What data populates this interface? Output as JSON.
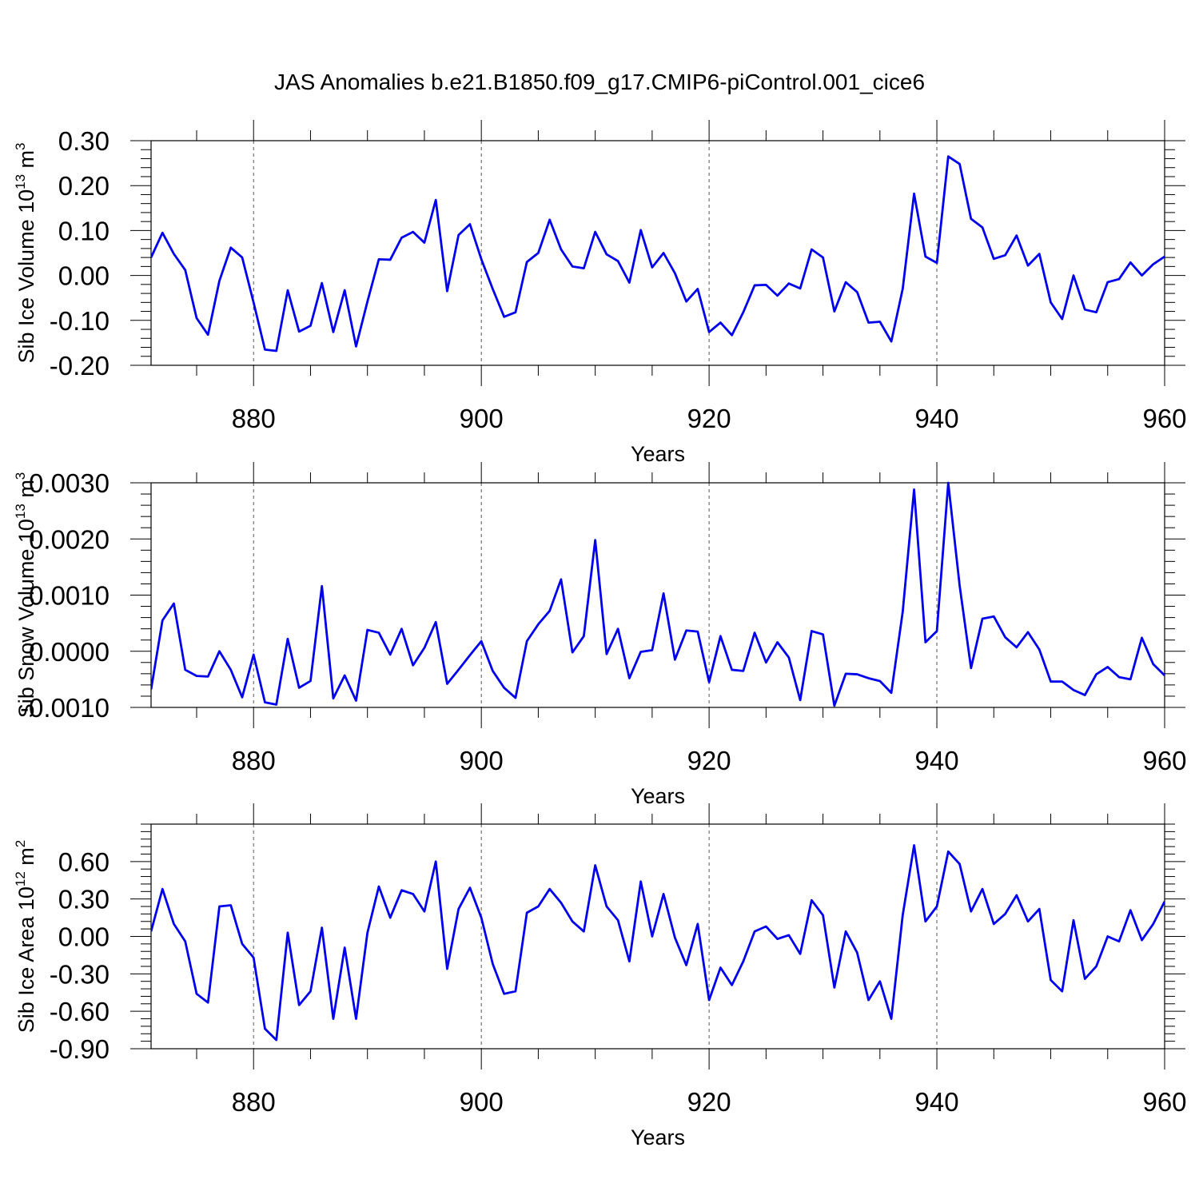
{
  "title": "JAS Anomalies b.e21.B1850.f09_g17.CMIP6-piControl.001_cice6",
  "line_color": "#0000ee",
  "chart_data": [
    {
      "type": "line",
      "title": "JAS Anomalies b.e21.B1850.f09_g17.CMIP6-piControl.001_cice6",
      "xlabel": "Years",
      "ylabel": "Sib Ice Volume 10",
      "ylabel_exp": "13",
      "ylabel_unit": " m",
      "ylabel_unit_exp": "3",
      "xlim": [
        871,
        960
      ],
      "ylim": [
        -0.2,
        0.3
      ],
      "x_ticks": [
        880,
        900,
        920,
        940,
        960
      ],
      "y_ticks": [
        "-0.20",
        "-0.10",
        "0.00",
        "0.10",
        "0.20",
        "0.30"
      ],
      "x_start": 871,
      "values": [
        0.04,
        0.095,
        0.048,
        0.012,
        -0.095,
        -0.132,
        -0.012,
        0.062,
        0.04,
        -0.06,
        -0.165,
        -0.168,
        -0.033,
        -0.125,
        -0.112,
        -0.017,
        -0.126,
        -0.033,
        -0.158,
        -0.058,
        0.036,
        0.035,
        0.084,
        0.097,
        0.073,
        0.168,
        -0.035,
        0.09,
        0.114,
        0.036,
        -0.03,
        -0.092,
        -0.082,
        0.03,
        0.05,
        0.124,
        0.058,
        0.02,
        0.016,
        0.097,
        0.047,
        0.032,
        -0.016,
        0.101,
        0.018,
        0.05,
        0.005,
        -0.058,
        -0.03,
        -0.126,
        -0.105,
        -0.133,
        -0.082,
        -0.022,
        -0.021,
        -0.045,
        -0.018,
        -0.029,
        0.058,
        0.04,
        -0.08,
        -0.015,
        -0.037,
        -0.105,
        -0.103,
        -0.147,
        -0.03,
        0.182,
        0.042,
        0.028,
        0.265,
        0.248,
        0.126,
        0.107,
        0.037,
        0.045,
        0.089,
        0.022,
        0.048,
        -0.06,
        -0.097,
        0.0,
        -0.076,
        -0.082,
        -0.015,
        -0.008,
        0.029,
        0.0,
        0.025,
        0.042
      ]
    },
    {
      "type": "line",
      "xlabel": "Years",
      "ylabel": "Sib Snow Volume 10",
      "ylabel_exp": "13",
      "ylabel_unit": " m",
      "ylabel_unit_exp": "3",
      "xlim": [
        871,
        960
      ],
      "ylim": [
        -0.001,
        0.003
      ],
      "x_ticks": [
        880,
        900,
        920,
        940,
        960
      ],
      "y_ticks": [
        "-0.0010",
        "0.0000",
        "0.0010",
        "0.0020",
        "0.0030"
      ],
      "x_start": 871,
      "values": [
        -0.00068,
        0.00055,
        0.00085,
        -0.00033,
        -0.00044,
        -0.00045,
        0.0,
        -0.00033,
        -0.00082,
        -6e-05,
        -0.00091,
        -0.00095,
        0.00022,
        -0.00065,
        -0.00053,
        0.00116,
        -0.00084,
        -0.00043,
        -0.00088,
        0.00038,
        0.00033,
        -6e-05,
        0.0004,
        -0.00025,
        6e-05,
        0.00052,
        -0.00058,
        -0.00033,
        -7e-05,
        0.00018,
        -0.00035,
        -0.00065,
        -0.00083,
        0.00018,
        0.00048,
        0.00072,
        0.00128,
        -2e-05,
        0.00027,
        0.00198,
        -5e-05,
        0.0004,
        -0.00048,
        -1e-05,
        2e-05,
        0.00103,
        -0.00015,
        0.00037,
        0.00035,
        -0.00055,
        0.00027,
        -0.00033,
        -0.00035,
        0.00033,
        -0.0002,
        0.00016,
        -0.00011,
        -0.00087,
        0.00036,
        0.0003,
        -0.00097,
        -0.0004,
        -0.00041,
        -0.00048,
        -0.00053,
        -0.00074,
        0.0007,
        0.00288,
        0.00016,
        0.00036,
        0.003,
        0.00117,
        -0.0003,
        0.00058,
        0.00062,
        0.00025,
        7e-05,
        0.00034,
        3e-05,
        -0.00054,
        -0.00054,
        -0.00069,
        -0.00078,
        -0.00041,
        -0.00028,
        -0.00046,
        -0.0005,
        0.00024,
        -0.00023,
        -0.00043
      ]
    },
    {
      "type": "line",
      "xlabel": "Years",
      "ylabel": "Sib Ice Area 10",
      "ylabel_exp": "12",
      "ylabel_unit": " m",
      "ylabel_unit_exp": "2",
      "xlim": [
        871,
        960
      ],
      "ylim": [
        -0.9,
        0.9
      ],
      "x_ticks": [
        880,
        900,
        920,
        940,
        960
      ],
      "y_ticks": [
        "-0.90",
        "-0.60",
        "-0.30",
        "0.00",
        "0.30",
        "0.60"
      ],
      "x_start": 871,
      "values": [
        0.04,
        0.38,
        0.1,
        -0.04,
        -0.46,
        -0.53,
        0.24,
        0.25,
        -0.06,
        -0.17,
        -0.74,
        -0.83,
        0.03,
        -0.55,
        -0.44,
        0.07,
        -0.66,
        -0.09,
        -0.66,
        0.03,
        0.4,
        0.15,
        0.37,
        0.34,
        0.2,
        0.6,
        -0.26,
        0.22,
        0.39,
        0.15,
        -0.22,
        -0.46,
        -0.44,
        0.19,
        0.24,
        0.38,
        0.27,
        0.12,
        0.04,
        0.57,
        0.24,
        0.13,
        -0.2,
        0.44,
        0.0,
        0.34,
        -0.01,
        -0.23,
        0.1,
        -0.51,
        -0.25,
        -0.39,
        -0.2,
        0.04,
        0.08,
        -0.02,
        0.01,
        -0.14,
        0.29,
        0.17,
        -0.41,
        0.04,
        -0.13,
        -0.51,
        -0.36,
        -0.66,
        0.17,
        0.73,
        0.12,
        0.24,
        0.68,
        0.58,
        0.2,
        0.38,
        0.1,
        0.18,
        0.33,
        0.12,
        0.22,
        -0.35,
        -0.44,
        0.13,
        -0.34,
        -0.24,
        0.0,
        -0.04,
        0.21,
        -0.03,
        0.1,
        0.28
      ]
    }
  ]
}
